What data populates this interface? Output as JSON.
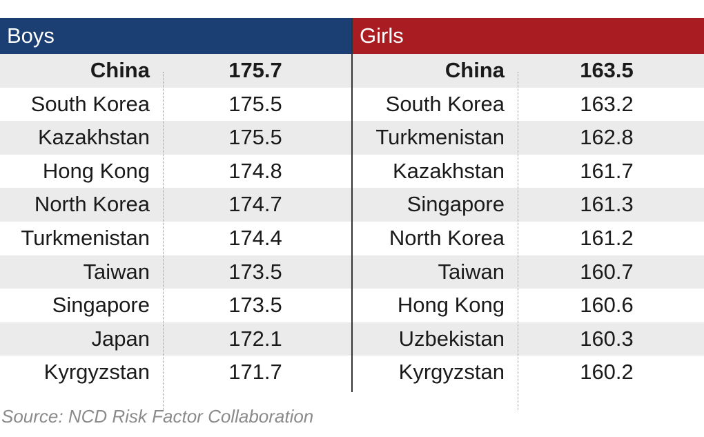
{
  "chart_data": [
    {
      "type": "table",
      "title": "Boys",
      "header_color": "#1b3f72",
      "rows": [
        {
          "country": "China",
          "value": "175.7"
        },
        {
          "country": "South Korea",
          "value": "175.5"
        },
        {
          "country": "Kazakhstan",
          "value": "175.5"
        },
        {
          "country": "Hong Kong",
          "value": "174.8"
        },
        {
          "country": "North Korea",
          "value": "174.7"
        },
        {
          "country": "Turkmenistan",
          "value": "174.4"
        },
        {
          "country": "Taiwan",
          "value": "173.5"
        },
        {
          "country": "Singapore",
          "value": "173.5"
        },
        {
          "country": "Japan",
          "value": "172.1"
        },
        {
          "country": "Kyrgyzstan",
          "value": "171.7"
        }
      ]
    },
    {
      "type": "table",
      "title": "Girls",
      "header_color": "#a91d22",
      "rows": [
        {
          "country": "China",
          "value": "163.5"
        },
        {
          "country": "South Korea",
          "value": "163.2"
        },
        {
          "country": "Turkmenistan",
          "value": "162.8"
        },
        {
          "country": "Kazakhstan",
          "value": "161.7"
        },
        {
          "country": "Singapore",
          "value": "161.3"
        },
        {
          "country": "North Korea",
          "value": "161.2"
        },
        {
          "country": "Taiwan",
          "value": "160.7"
        },
        {
          "country": "Hong Kong",
          "value": "160.6"
        },
        {
          "country": "Uzbekistan",
          "value": "160.3"
        },
        {
          "country": "Kyrgyzstan",
          "value": "160.2"
        }
      ]
    }
  ],
  "highlight_row": "China",
  "row_shade_color": "#ebebeb",
  "source": "Source: NCD Risk Factor Collaboration"
}
